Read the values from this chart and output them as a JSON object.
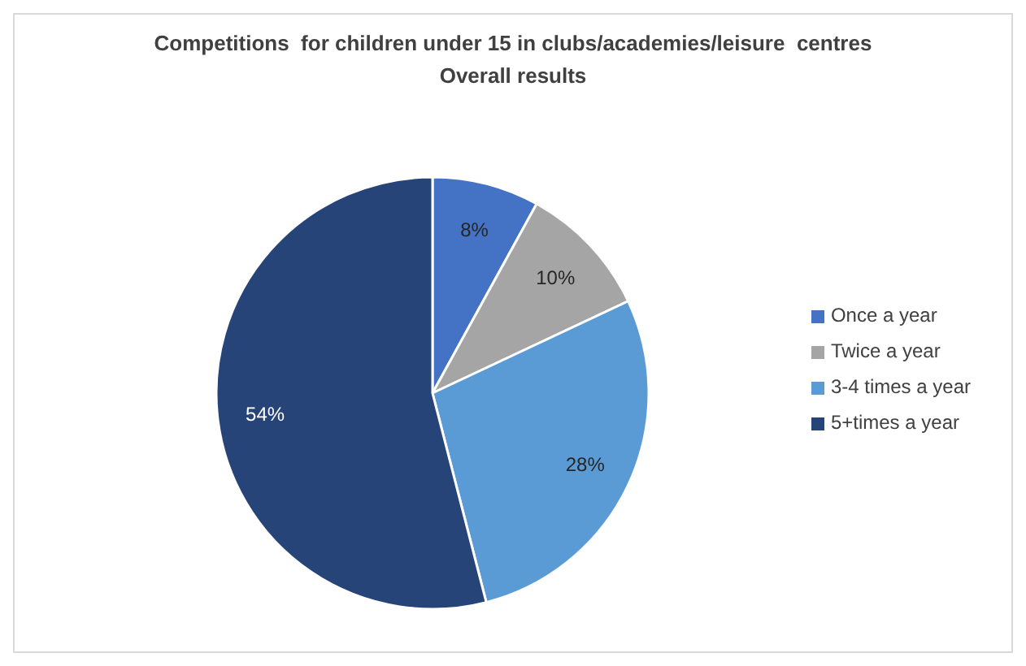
{
  "chart_data": {
    "type": "pie",
    "title": "Competitions  for children under 15 in clubs/academies/leisure  centres",
    "subtitle": "Overall results",
    "categories": [
      "Once a year",
      "Twice a year",
      "3-4 times a year",
      "5+times a year"
    ],
    "values": [
      8,
      10,
      28,
      54
    ],
    "colors": [
      "#4472c4",
      "#a5a5a5",
      "#5b9bd5",
      "#264478"
    ],
    "value_labels": [
      "8%",
      "10%",
      "28%",
      "54%"
    ],
    "legend": "right"
  }
}
